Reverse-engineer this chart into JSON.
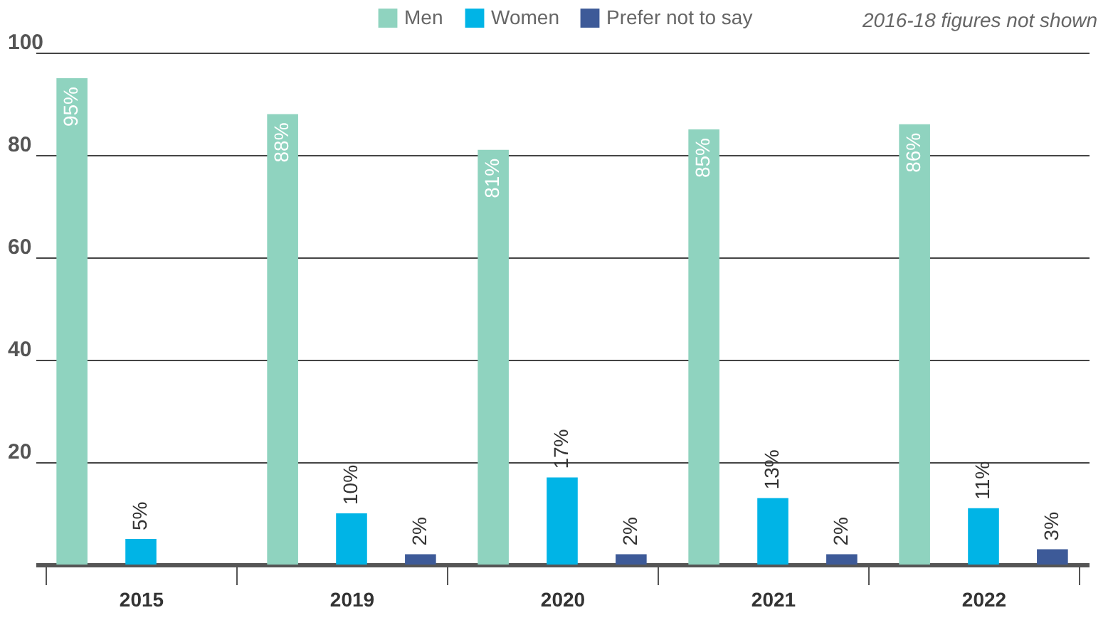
{
  "chart_data": {
    "type": "bar",
    "categories": [
      "2015",
      "2019",
      "2020",
      "2021",
      "2022"
    ],
    "series": [
      {
        "name": "Men",
        "color": "#8fd3bf",
        "values": [
          95,
          88,
          81,
          85,
          86
        ],
        "value_labels": [
          "95%",
          "88%",
          "81%",
          "85%",
          "86%"
        ]
      },
      {
        "name": "Women",
        "color": "#00b4e6",
        "values": [
          5,
          10,
          17,
          13,
          11
        ],
        "value_labels": [
          "5%",
          "10%",
          "17%",
          "13%",
          "11%"
        ]
      },
      {
        "name": "Prefer not to say",
        "color": "#3d5a98",
        "values": [
          null,
          2,
          2,
          2,
          3
        ],
        "value_labels": [
          null,
          "2%",
          "2%",
          "2%",
          "3%"
        ]
      }
    ],
    "ylim": [
      0,
      100
    ],
    "yticks": [
      {
        "value": 0,
        "label": null
      },
      20,
      40,
      60,
      80,
      100
    ],
    "grid": "y",
    "legend": "top",
    "annotations": [
      "2016-18 figures not shown"
    ]
  }
}
